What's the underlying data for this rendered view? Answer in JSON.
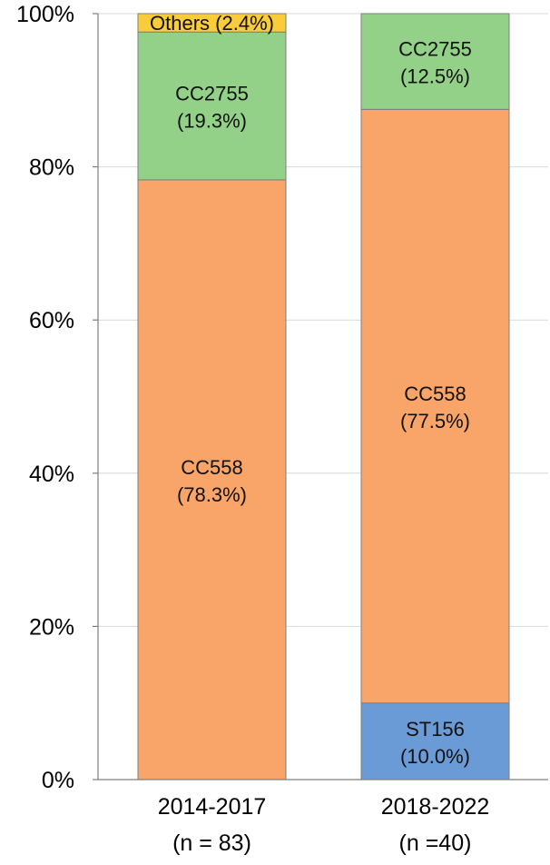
{
  "chart_data": {
    "type": "bar",
    "stacked": true,
    "percent": true,
    "categories": [
      "2014-2017",
      "2018-2022"
    ],
    "category_sublabels": [
      "(n = 83)",
      "(n =40)"
    ],
    "series": [
      {
        "name": "ST156",
        "values": [
          0,
          10.0
        ],
        "color": "#6a9bd6",
        "labels": [
          "",
          "(10.0%)"
        ]
      },
      {
        "name": "CC558",
        "values": [
          78.3,
          77.5
        ],
        "color": "#f9a56a",
        "labels": [
          "(78.3%)",
          "(77.5%)"
        ]
      },
      {
        "name": "CC2755",
        "values": [
          19.3,
          12.5
        ],
        "color": "#93d189",
        "labels": [
          "(19.3%)",
          "(12.5%)"
        ]
      },
      {
        "name": "Others",
        "values": [
          2.4,
          0
        ],
        "color": "#fbcc3a",
        "labels": [
          "(2.4%)",
          ""
        ]
      }
    ],
    "yticks": [
      "0%",
      "20%",
      "40%",
      "60%",
      "80%",
      "100%"
    ],
    "ylim": [
      0,
      100
    ],
    "grid": true,
    "legend": "none (labels inside bars)"
  }
}
